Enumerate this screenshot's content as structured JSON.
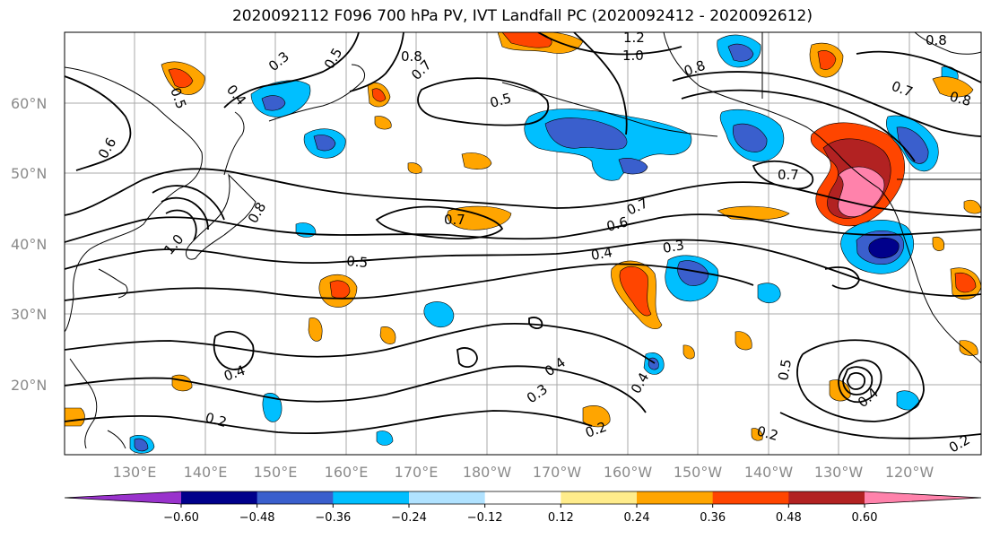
{
  "title": "2020092112 F096 700 hPa PV, IVT Landfall PC (2020092412 - 2020092612)",
  "map": {
    "lat_labels": [
      "60°N",
      "50°N",
      "40°N",
      "30°N",
      "20°N"
    ],
    "lon_labels": [
      "130°E",
      "140°E",
      "150°E",
      "160°E",
      "170°E",
      "180°W",
      "170°W",
      "160°W",
      "150°W",
      "140°W",
      "130°W",
      "120°W"
    ],
    "contour_labels": [
      "0.3",
      "0.5",
      "0.8",
      "0.7",
      "1.2",
      "1.0",
      "0.8",
      "0.8",
      "0.7",
      "0.8",
      "0.4",
      "0.5",
      "0.6",
      "0.5",
      "0.7",
      "0.6",
      "0.7",
      "0.4",
      "0.3",
      "0.5",
      "1.0",
      "0.8",
      "0.7",
      "0.4",
      "0.4",
      "0.3",
      "0.4",
      "0.2",
      "0.2",
      "0.5",
      "0.4",
      "0.2",
      "0.2"
    ]
  },
  "colorbar": {
    "ticks": [
      "−0.60",
      "−0.48",
      "−0.36",
      "−0.24",
      "−0.12",
      "0.12",
      "0.24",
      "0.36",
      "0.48",
      "0.60"
    ],
    "colors": [
      "#9932cc",
      "#00008b",
      "#3a5fcd",
      "#00bfff",
      "#b0e2ff",
      "#ffffff",
      "#ffec8b",
      "#ffa500",
      "#ff4500",
      "#b22222",
      "#ff82ab"
    ]
  }
}
